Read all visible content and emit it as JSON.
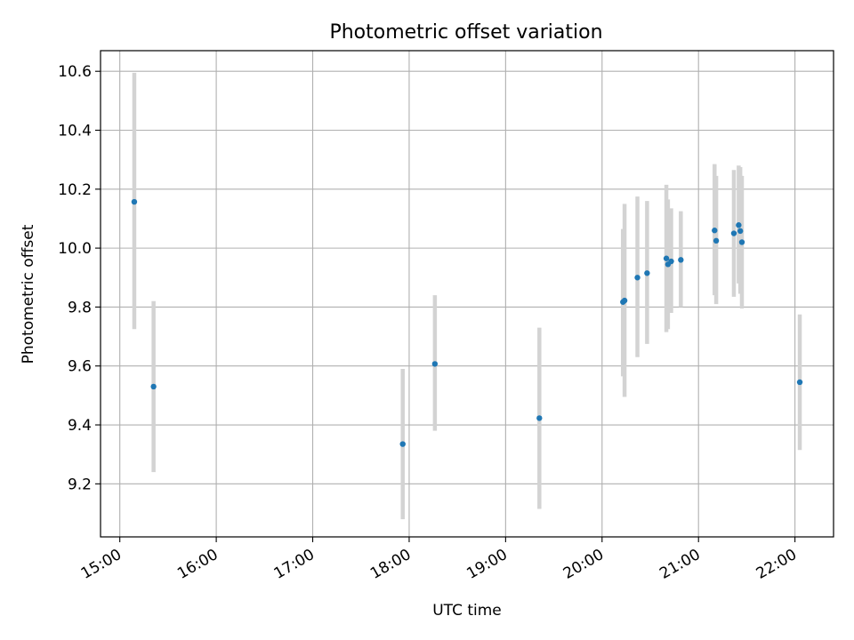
{
  "chart_data": {
    "type": "scatter",
    "title": "Photometric offset variation",
    "xlabel": "UTC time",
    "ylabel": "Photometric offset",
    "x_ticks": [
      "15:00",
      "16:00",
      "17:00",
      "18:00",
      "19:00",
      "20:00",
      "21:00",
      "22:00"
    ],
    "y_ticks": [
      "9.2",
      "9.4",
      "9.6",
      "9.8",
      "10.0",
      "10.2",
      "10.4",
      "10.6"
    ],
    "xlim": [
      "14:48",
      "22:24"
    ],
    "ylim": [
      9.02,
      10.67
    ],
    "grid": true,
    "marker_color": "#1f77b4",
    "errorbar_color": "#d3d3d3",
    "points": [
      {
        "x": "15:09",
        "y": 10.157,
        "ylow": 9.725,
        "yhigh": 10.595
      },
      {
        "x": "15:21",
        "y": 9.53,
        "ylow": 9.24,
        "yhigh": 9.82
      },
      {
        "x": "17:56",
        "y": 9.335,
        "ylow": 9.08,
        "yhigh": 9.59
      },
      {
        "x": "18:16",
        "y": 9.607,
        "ylow": 9.38,
        "yhigh": 9.84
      },
      {
        "x": "19:21",
        "y": 9.423,
        "ylow": 9.115,
        "yhigh": 9.73
      },
      {
        "x": "20:13",
        "y": 9.817,
        "ylow": 9.565,
        "yhigh": 10.065
      },
      {
        "x": "20:14",
        "y": 9.822,
        "ylow": 9.495,
        "yhigh": 10.15
      },
      {
        "x": "20:22",
        "y": 9.9,
        "ylow": 9.63,
        "yhigh": 10.175
      },
      {
        "x": "20:28",
        "y": 9.915,
        "ylow": 9.675,
        "yhigh": 10.16
      },
      {
        "x": "20:40",
        "y": 9.965,
        "ylow": 9.715,
        "yhigh": 10.215
      },
      {
        "x": "20:41",
        "y": 9.945,
        "ylow": 9.725,
        "yhigh": 10.165
      },
      {
        "x": "20:43",
        "y": 9.955,
        "ylow": 9.78,
        "yhigh": 10.135
      },
      {
        "x": "20:49",
        "y": 9.96,
        "ylow": 9.8,
        "yhigh": 10.125
      },
      {
        "x": "21:10",
        "y": 10.06,
        "ylow": 9.84,
        "yhigh": 10.285
      },
      {
        "x": "21:11",
        "y": 10.025,
        "ylow": 9.81,
        "yhigh": 10.245
      },
      {
        "x": "21:22",
        "y": 10.05,
        "ylow": 9.835,
        "yhigh": 10.265
      },
      {
        "x": "21:25",
        "y": 10.078,
        "ylow": 9.88,
        "yhigh": 10.28
      },
      {
        "x": "21:26",
        "y": 10.058,
        "ylow": 9.845,
        "yhigh": 10.275
      },
      {
        "x": "21:27",
        "y": 10.02,
        "ylow": 9.795,
        "yhigh": 10.245
      },
      {
        "x": "22:03",
        "y": 9.545,
        "ylow": 9.315,
        "yhigh": 9.775
      }
    ]
  }
}
